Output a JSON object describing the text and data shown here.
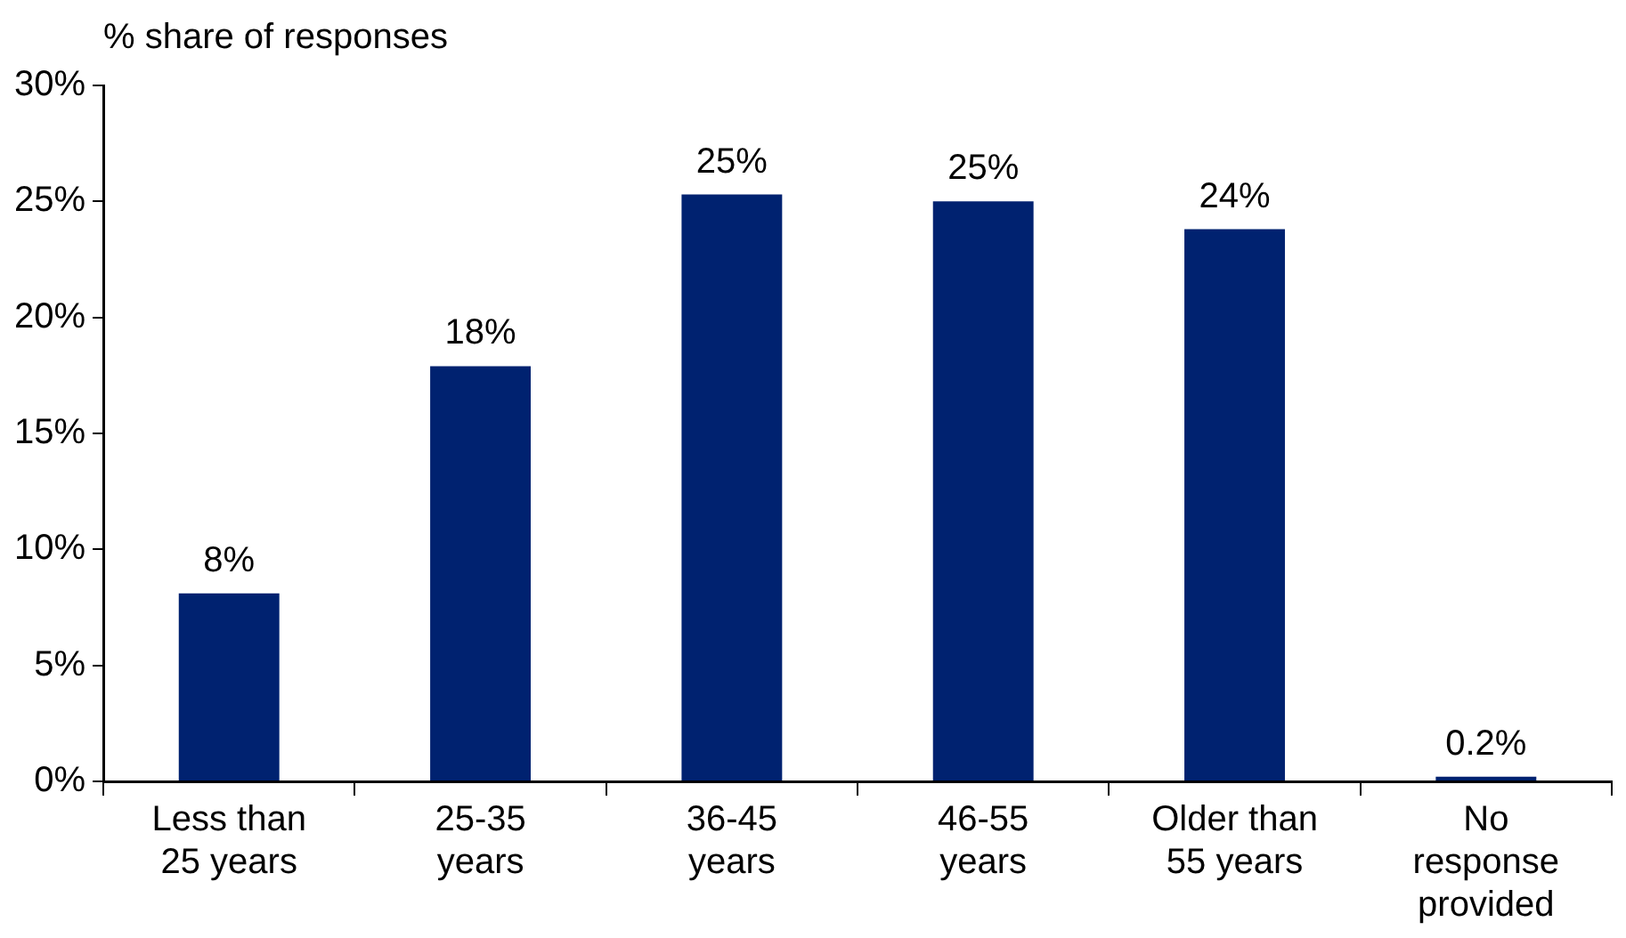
{
  "chart_data": {
    "type": "bar",
    "ylabel": "% share of responses",
    "categories": [
      "Less than 25 years",
      "25-35 years",
      "36-45 years",
      "46-55 years",
      "Older than 55 years",
      "No response provided"
    ],
    "values": [
      8.1,
      17.9,
      25.3,
      25.0,
      23.8,
      0.2
    ],
    "value_labels": [
      "8%",
      "18%",
      "25%",
      "25%",
      "24%",
      "0.2%"
    ],
    "color": "#002270",
    "ylim": [
      0,
      30
    ],
    "yticks": [
      {
        "value": 0,
        "label": "0%"
      },
      {
        "value": 5,
        "label": "5%"
      },
      {
        "value": 10,
        "label": "10%"
      },
      {
        "value": 15,
        "label": "15%"
      },
      {
        "value": 20,
        "label": "20%"
      },
      {
        "value": 25,
        "label": "25%"
      },
      {
        "value": 30,
        "label": "30%"
      }
    ],
    "grid": false,
    "legend": false
  }
}
